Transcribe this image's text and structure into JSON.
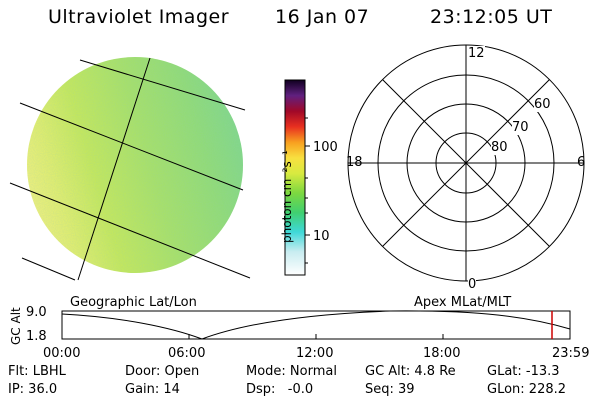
{
  "header": {
    "instrument": "Ultraviolet Imager",
    "date": "16 Jan 07",
    "time": "23:12:05 UT"
  },
  "colorbar": {
    "label": "photon cm⁻²s⁻¹",
    "ticks": [
      "100",
      "10"
    ]
  },
  "polar_plot": {
    "mlt_labels": [
      "12",
      "18",
      "6",
      "0"
    ],
    "lat_labels": [
      "60",
      "70",
      "80"
    ]
  },
  "projection_labels": {
    "left": "Geographic Lat/Lon",
    "right": "Apex MLat/MLT"
  },
  "altitude_plot": {
    "axis_label": "GC Alt",
    "y_ticks": [
      "9.0",
      "1.8"
    ],
    "time_ticks": [
      "00:00",
      "06:00",
      "12:00",
      "18:00",
      "23:59"
    ]
  },
  "info": {
    "filter": "Flt: LBHL",
    "ip": "IP: 36.0",
    "door": "Door: Open",
    "gain": "Gain: 14",
    "mode": "Mode: Normal",
    "dsp": "Dsp:   -0.0",
    "gc_alt": "GC Alt: 4.8 Re",
    "seq": "Seq: 39",
    "glat": "GLat: -13.3",
    "glon": "GLon: 228.2"
  },
  "colors": {
    "cursor_line": "#cc0000"
  }
}
